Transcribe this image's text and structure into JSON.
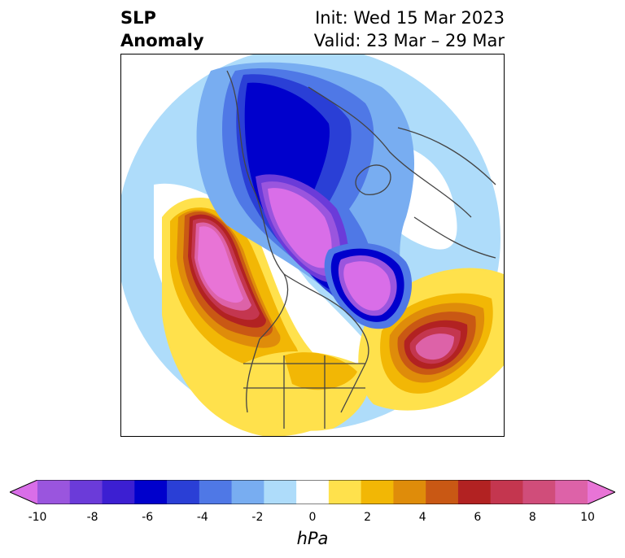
{
  "header": {
    "variable_line1": "SLP",
    "variable_line2": "Anomaly",
    "init_text": "Init: Wed 15 Mar 2023",
    "valid_text": "Valid: 23 Mar – 29 Mar"
  },
  "map": {
    "projection": "polar stereographic",
    "region": "North America / Arctic",
    "features": [
      {
        "name": "low-anomaly-arctic-alaska",
        "sign": "negative",
        "min_hpa": -10
      },
      {
        "name": "low-anomaly-greenland",
        "sign": "negative",
        "min_hpa": -10
      },
      {
        "name": "low-anomaly-hudson-bay",
        "sign": "negative",
        "min_hpa": -6
      },
      {
        "name": "high-anomaly-north-pacific",
        "sign": "positive",
        "max_hpa": 10
      },
      {
        "name": "high-anomaly-north-atlantic",
        "sign": "positive",
        "max_hpa": 10
      },
      {
        "name": "high-anomaly-siberia",
        "sign": "positive",
        "max_hpa": 2
      }
    ]
  },
  "colorbar": {
    "units": "hPa",
    "ticks": [
      "-10",
      "-8",
      "-6",
      "-4",
      "-2",
      "0",
      "2",
      "4",
      "6",
      "8",
      "10"
    ],
    "extend": "both",
    "colors": [
      "#d96ee8",
      "#9a55de",
      "#6b3bd9",
      "#3c1fd2",
      "#0000cc",
      "#2a3fd6",
      "#4f78e6",
      "#78adf1",
      "#aedcfa",
      "#ffffff",
      "#ffe14c",
      "#f2b705",
      "#df8c0a",
      "#c95814",
      "#b22222",
      "#c4364f",
      "#d04d7a",
      "#dd62a8",
      "#e874d6"
    ]
  }
}
